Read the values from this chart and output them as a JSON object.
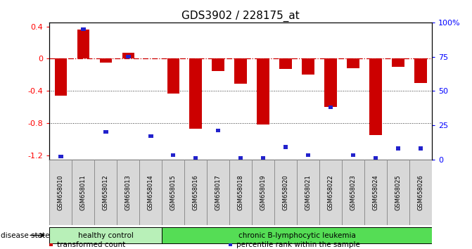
{
  "title": "GDS3902 / 228175_at",
  "samples": [
    "GSM658010",
    "GSM658011",
    "GSM658012",
    "GSM658013",
    "GSM658014",
    "GSM658015",
    "GSM658016",
    "GSM658017",
    "GSM658018",
    "GSM658019",
    "GSM658020",
    "GSM658021",
    "GSM658022",
    "GSM658023",
    "GSM658024",
    "GSM658025",
    "GSM658026"
  ],
  "bar_values": [
    -0.46,
    0.36,
    -0.05,
    0.07,
    0.0,
    -0.43,
    -0.87,
    -0.15,
    -0.31,
    -0.82,
    -0.13,
    -0.2,
    -0.6,
    -0.12,
    -0.95,
    -0.1,
    -0.3
  ],
  "blue_percentiles": [
    2,
    95,
    20,
    75,
    17,
    3,
    1,
    21,
    1,
    1,
    9,
    3,
    38,
    3,
    1,
    8,
    8
  ],
  "healthy_span": [
    0,
    4
  ],
  "leukemia_span": [
    5,
    16
  ],
  "healthy_label": "healthy control",
  "leukemia_label": "chronic B-lymphocytic leukemia",
  "healthy_color": "#b8f0b8",
  "leukemia_color": "#55dd55",
  "bar_color": "#cc0000",
  "blue_color": "#2222cc",
  "hline_color": "#cc0000",
  "dotted_color": "#333333",
  "ylim": [
    -1.25,
    0.45
  ],
  "yticks": [
    -1.2,
    -0.8,
    -0.4,
    0.0,
    0.4
  ],
  "ytick_labels": [
    "-1.2",
    "-0.8",
    "-0.4",
    "0",
    "0.4"
  ],
  "y2ticks": [
    0,
    25,
    50,
    75,
    100
  ],
  "y2ticklabels": [
    "0",
    "25",
    "50",
    "75",
    "100%"
  ],
  "bar_width": 0.55,
  "disease_state_label": "disease state",
  "legend_red_label": "transformed count",
  "legend_blue_label": "percentile rank within the sample",
  "tick_fontsize": 7,
  "label_fontsize": 8,
  "title_fontsize": 11,
  "cell_facecolor": "#d8d8d8",
  "cell_edgecolor": "#888888"
}
